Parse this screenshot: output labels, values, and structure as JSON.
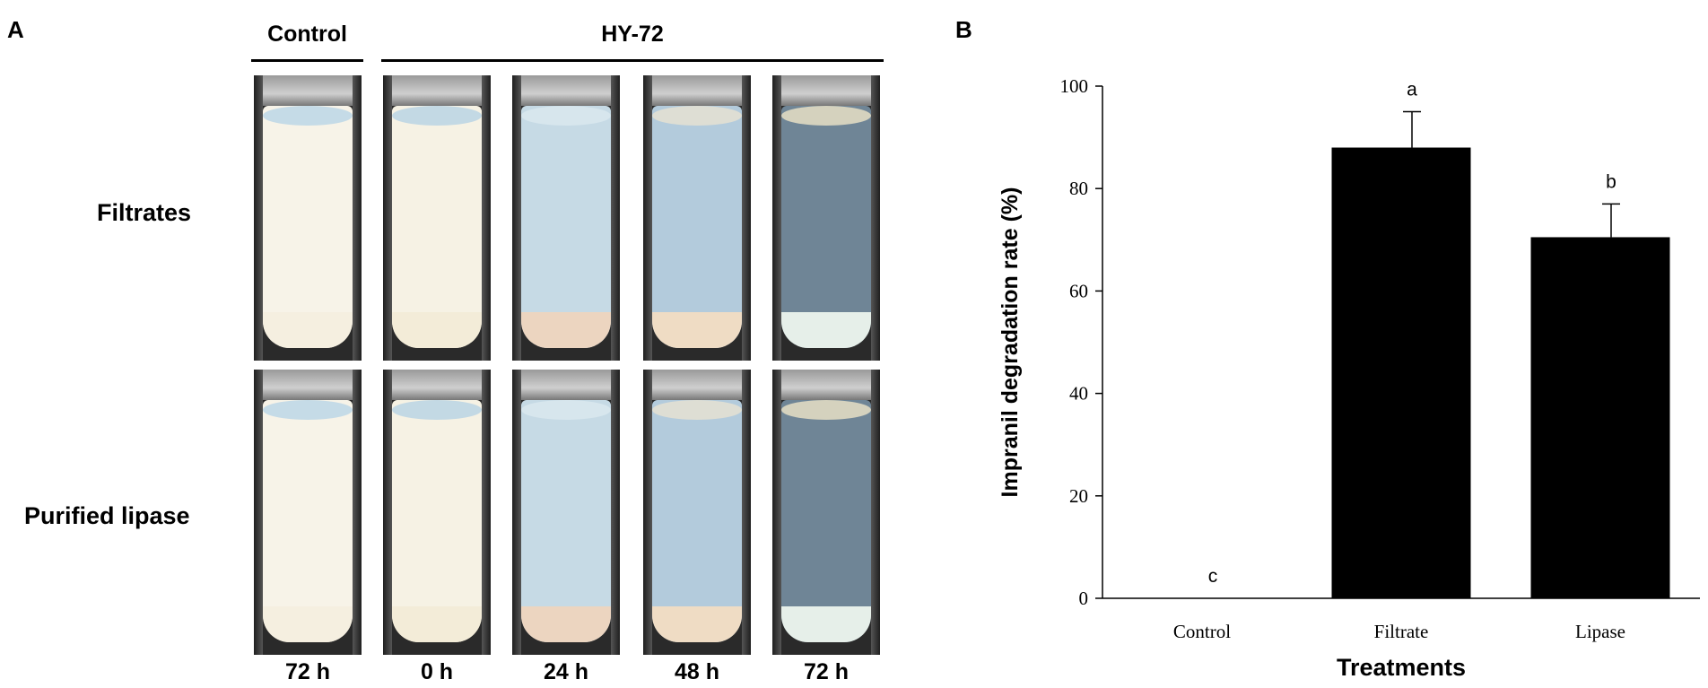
{
  "panels": {
    "a": "A",
    "b": "B"
  },
  "panel_a": {
    "groups": {
      "control": "Control",
      "hy72": "HY-72"
    },
    "rows": [
      {
        "label": "Filtrates"
      },
      {
        "label": "Purified lipase"
      }
    ],
    "columns": [
      {
        "time": "72 h",
        "group": "Control",
        "liquid": "#f7f3e8",
        "sediment": "#f5efe0",
        "meniscus": "#b8d4e6"
      },
      {
        "time": "0 h",
        "group": "HY-72",
        "liquid": "#f6f2e4",
        "sediment": "#f3ecd8",
        "meniscus": "#b7d2e4"
      },
      {
        "time": "24 h",
        "group": "HY-72",
        "liquid": "#c6dae5",
        "sediment": "#ecd5c0",
        "meniscus": "#dbe8ef"
      },
      {
        "time": "48 h",
        "group": "HY-72",
        "liquid": "#b3cbdc",
        "sediment": "#efdcc4",
        "meniscus": "#e8e2d2"
      },
      {
        "time": "72 h",
        "group": "HY-72",
        "liquid": "#6f8596",
        "sediment": "#e6efe9",
        "meniscus": "#efe5c8"
      }
    ]
  },
  "chart_data": {
    "type": "bar",
    "categories": [
      "Control",
      "Filtrate",
      "Lipase"
    ],
    "values": [
      0,
      88,
      70.5
    ],
    "errors": [
      0,
      7,
      6.5
    ],
    "significance": [
      "c",
      "a",
      "b"
    ],
    "xlabel": "Treatments",
    "ylabel": "Impranil degradation rate (%)",
    "ylim": [
      0,
      100
    ],
    "yticks": [
      0,
      20,
      40,
      60,
      80,
      100
    ],
    "bar_color": "#000000",
    "grid": false
  }
}
